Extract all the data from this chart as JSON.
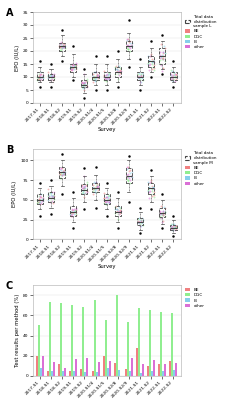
{
  "surveys": [
    "2017-S1",
    "2018-S1",
    "2018-S2",
    "2019-S1",
    "2019-S2",
    "2020-S1/4",
    "2020-S1/5",
    "2020-S2/8",
    "2020-S2/9",
    "2021-S1",
    "2021-S2",
    "2022-S1",
    "2022-S2"
  ],
  "colors": {
    "BE": "#f08080",
    "DGC": "#90ee90",
    "IB": "#87ceeb",
    "other": "#da70d6",
    "total_box": "#808080"
  },
  "panel_A": {
    "ylabel": "EPO (IU/L)",
    "legend_sample": "Total data\ndistribution\nsample L",
    "ylim": [
      0,
      35
    ],
    "yticks": [
      0,
      5,
      10,
      15,
      20,
      25,
      30,
      35
    ],
    "total_boxes": {
      "medians": [
        10,
        10,
        22,
        14,
        7,
        10,
        10,
        12,
        22,
        10,
        16,
        18,
        10
      ],
      "q1": [
        9,
        9,
        20,
        12,
        6,
        9,
        9,
        10,
        20,
        9,
        14,
        15,
        9
      ],
      "q3": [
        12,
        11,
        23,
        15,
        9,
        12,
        12,
        14,
        24,
        12,
        18,
        21,
        12
      ],
      "whislo": [
        8,
        8,
        18,
        10,
        4,
        7,
        7,
        8,
        17,
        7,
        12,
        13,
        8
      ],
      "whishi": [
        14,
        13,
        26,
        19,
        11,
        15,
        15,
        17,
        27,
        14,
        21,
        24,
        14
      ],
      "fliers_hi": [
        16,
        15,
        28,
        22,
        13,
        18,
        18,
        20,
        32,
        17,
        24,
        26,
        16
      ],
      "fliers_lo": [
        6,
        6,
        16,
        9,
        2,
        5,
        5,
        6,
        14,
        5,
        10,
        11,
        6
      ]
    }
  },
  "panel_B": {
    "ylabel": "EPO (IU/L)",
    "legend_sample": "Total data\ndistribution\nsample M",
    "ylim": [
      0,
      115
    ],
    "yticks": [
      0,
      25,
      50,
      75,
      100
    ],
    "total_boxes": {
      "medians": [
        50,
        53,
        85,
        35,
        63,
        65,
        50,
        35,
        80,
        22,
        65,
        33,
        15
      ],
      "q1": [
        45,
        48,
        78,
        30,
        57,
        60,
        45,
        30,
        72,
        18,
        58,
        28,
        12
      ],
      "q3": [
        57,
        60,
        92,
        42,
        70,
        72,
        57,
        42,
        90,
        27,
        72,
        40,
        18
      ],
      "whislo": [
        38,
        40,
        68,
        22,
        48,
        50,
        38,
        22,
        60,
        12,
        48,
        20,
        8
      ],
      "whishi": [
        65,
        68,
        100,
        52,
        80,
        82,
        65,
        52,
        100,
        35,
        80,
        50,
        25
      ],
      "fliers_hi": [
        72,
        75,
        108,
        60,
        90,
        92,
        72,
        60,
        105,
        40,
        88,
        58,
        30
      ],
      "fliers_lo": [
        30,
        32,
        58,
        15,
        38,
        40,
        30,
        15,
        48,
        8,
        38,
        14,
        5
      ]
    }
  },
  "panel_C": {
    "ylabel": "Test results per method (%)",
    "ylim": [
      0,
      90
    ],
    "yticks": [
      0,
      20,
      40,
      60,
      80
    ],
    "BE": [
      20,
      5,
      12,
      5,
      7,
      5,
      20,
      13,
      7,
      28,
      10,
      12,
      15
    ],
    "DGC": [
      50,
      73,
      72,
      70,
      68,
      75,
      55,
      80,
      53,
      67,
      65,
      63,
      62
    ],
    "IB": [
      8,
      5,
      5,
      5,
      4,
      4,
      8,
      6,
      5,
      3,
      5,
      5,
      6
    ],
    "other": [
      20,
      14,
      8,
      17,
      18,
      14,
      15,
      0,
      18,
      12,
      16,
      12,
      13
    ]
  },
  "background_color": "#ffffff",
  "grid_color": "#e0e0e0"
}
